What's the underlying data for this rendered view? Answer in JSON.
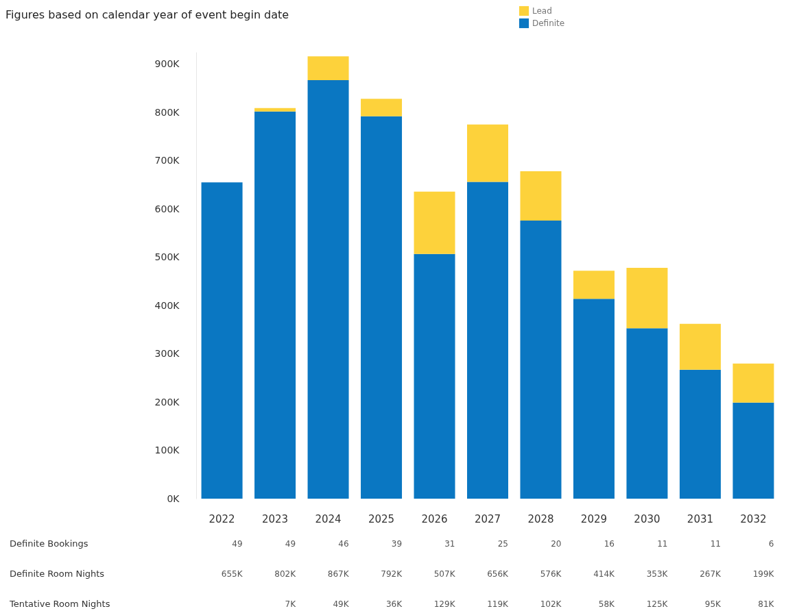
{
  "chart_data": {
    "type": "bar",
    "stacked": true,
    "subtitle": "Figures based on calendar year of event begin date",
    "categories": [
      "2022",
      "2023",
      "2024",
      "2025",
      "2026",
      "2027",
      "2028",
      "2029",
      "2030",
      "2031",
      "2032"
    ],
    "series": [
      {
        "name": "Definite",
        "color": "#0a77c2",
        "values": [
          655000,
          802000,
          867000,
          792000,
          507000,
          656000,
          576000,
          414000,
          353000,
          267000,
          199000
        ],
        "value_labels": [
          "655K",
          "802K",
          "867K",
          "792K",
          "507K",
          "656K",
          "576K",
          "414K",
          "353K",
          "267K",
          "199K"
        ]
      },
      {
        "name": "Lead",
        "color": "#fdd23b",
        "values": [
          null,
          7000,
          49000,
          36000,
          129000,
          119000,
          102000,
          58000,
          125000,
          95000,
          81000
        ],
        "value_labels": [
          null,
          "7K",
          "49K",
          "36K",
          "129K",
          "119K",
          "102K",
          "58K",
          "125K",
          "95K",
          "81K"
        ]
      }
    ],
    "ylim": [
      0,
      925000
    ],
    "yticks": [
      {
        "value": 0,
        "label": "0K"
      },
      {
        "value": 100000,
        "label": "100K"
      },
      {
        "value": 200000,
        "label": "200K"
      },
      {
        "value": 300000,
        "label": "300K"
      },
      {
        "value": 400000,
        "label": "400K"
      },
      {
        "value": 500000,
        "label": "500K"
      },
      {
        "value": 600000,
        "label": "600K"
      },
      {
        "value": 700000,
        "label": "700K"
      },
      {
        "value": 800000,
        "label": "800K"
      },
      {
        "value": 900000,
        "label": "900K"
      }
    ],
    "grid": false,
    "legend": "top right",
    "annotations": [
      "Definite Bookings",
      "Definite Room Nights",
      "Tentative Room Nights",
      "49",
      "49",
      "46",
      "39",
      "31",
      "25",
      "20",
      "16",
      "11",
      "11",
      "6"
    ]
  }
}
